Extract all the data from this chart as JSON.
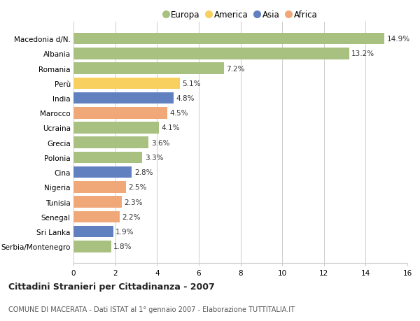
{
  "countries": [
    "Serbia/Montenegro",
    "Sri Lanka",
    "Senegal",
    "Tunisia",
    "Nigeria",
    "Cina",
    "Polonia",
    "Grecia",
    "Ucraina",
    "Marocco",
    "India",
    "Perù",
    "Romania",
    "Albania",
    "Macedonia d/N."
  ],
  "values": [
    1.8,
    1.9,
    2.2,
    2.3,
    2.5,
    2.8,
    3.3,
    3.6,
    4.1,
    4.5,
    4.8,
    5.1,
    7.2,
    13.2,
    14.9
  ],
  "continents": [
    "Europa",
    "Asia",
    "Africa",
    "Africa",
    "Africa",
    "Asia",
    "Europa",
    "Europa",
    "Europa",
    "Africa",
    "Asia",
    "America",
    "Europa",
    "Europa",
    "Europa"
  ],
  "colors": {
    "Europa": "#A8C080",
    "America": "#F8D060",
    "Asia": "#6080C0",
    "Africa": "#F0A878"
  },
  "legend_order": [
    "Europa",
    "America",
    "Asia",
    "Africa"
  ],
  "title1": "Cittadini Stranieri per Cittadinanza - 2007",
  "title2": "COMUNE DI MACERATA - Dati ISTAT al 1° gennaio 2007 - Elaborazione TUTTITALIA.IT",
  "xlim": [
    0,
    16
  ],
  "xticks": [
    0,
    2,
    4,
    6,
    8,
    10,
    12,
    14,
    16
  ],
  "background_color": "#FFFFFF",
  "grid_color": "#CCCCCC"
}
